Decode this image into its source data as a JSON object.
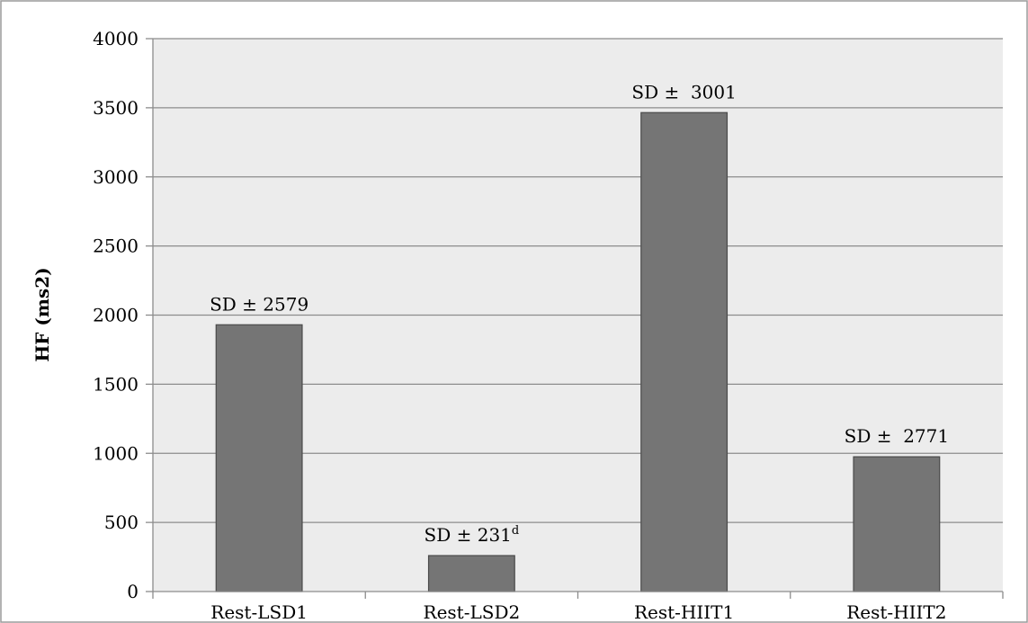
{
  "chart_data": {
    "type": "bar",
    "title": "",
    "xlabel": "",
    "ylabel": "HF (ms2)",
    "ylim": [
      0,
      4000
    ],
    "yticks": [
      "0",
      "500",
      "1000",
      "1500",
      "2000",
      "2500",
      "3000",
      "3500",
      "4000"
    ],
    "grid": true,
    "legend": "none",
    "categories": [
      "Rest-LSD1",
      "Rest-LSD2",
      "Rest-HIIT1",
      "Rest-HIIT2"
    ],
    "values": [
      1930,
      260,
      3465,
      975
    ],
    "annotations": [
      {
        "text": "SD ± 2579",
        "sup": ""
      },
      {
        "text": "SD ± 231",
        "sup": "d"
      },
      {
        "text": "SD ±  3001",
        "sup": ""
      },
      {
        "text": "SD ±  2771",
        "sup": ""
      }
    ],
    "colors": {
      "bar": "#757575",
      "bar_edge": "#4a4a4a",
      "plot_background": "#ececec",
      "gridline": "#8c8c8c",
      "axis": "#8c8c8c",
      "border": "#9a9a9a"
    }
  }
}
